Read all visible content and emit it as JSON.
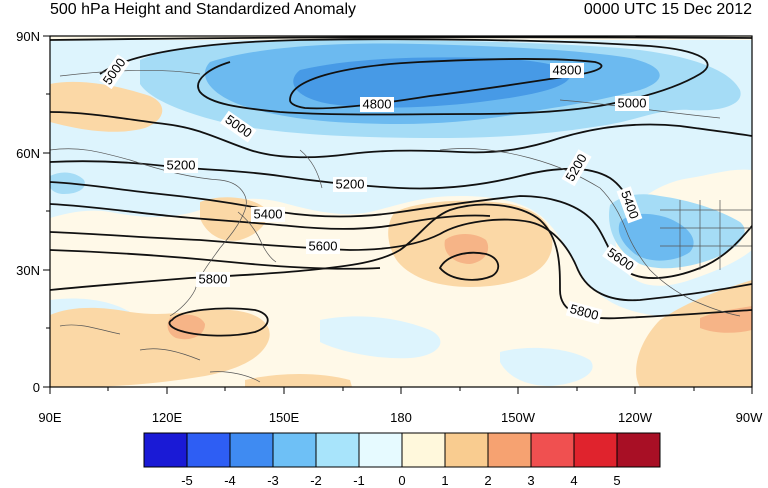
{
  "title_left": "500 hPa Height and Standardized Anomaly",
  "title_right": "0000 UTC 15 Dec 2012",
  "latitude_labels": [
    "90N",
    "60N",
    "30N",
    "0"
  ],
  "longitude_labels": [
    "90E",
    "120E",
    "150E",
    "180",
    "150W",
    "120W",
    "90W"
  ],
  "contour_labels": [
    "5000",
    "4800",
    "4800",
    "5000",
    "5000",
    "5200",
    "5200",
    "5200",
    "5400",
    "5400",
    "5600",
    "5600",
    "5800",
    "5800"
  ],
  "colorbar": {
    "labels": [
      "-5",
      "-4",
      "-3",
      "-2",
      "-1",
      "0",
      "1",
      "2",
      "3",
      "4",
      "5"
    ],
    "colors": [
      "#1a1ad6",
      "#2e5ef4",
      "#3f8bf2",
      "#6ec0f6",
      "#a8e4fb",
      "#e6faff",
      "#fff8dc",
      "#f9cc90",
      "#f6a271",
      "#f05050",
      "#e0232d",
      "#a80f25"
    ]
  },
  "palette": {
    "negative_1": "#ddf4fd",
    "negative_2": "#a5dcf6",
    "negative_3": "#6cbaf0",
    "negative_4": "#479ae6",
    "neutral": "#fff9e8",
    "positive_1": "#fbd8a6",
    "positive_2": "#f6b487"
  }
}
